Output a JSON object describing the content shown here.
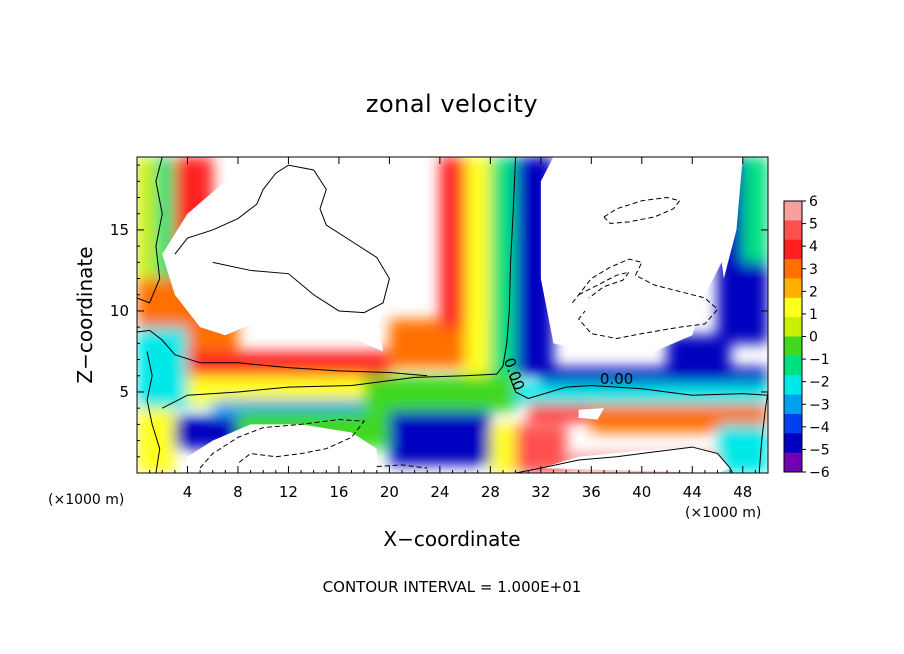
{
  "chart_data": {
    "type": "heatmap",
    "title": "zonal velocity",
    "xlabel": "X−coordinate",
    "ylabel": "Z−coordinate",
    "x_unit": "(×1000 m)",
    "y_unit": "(×1000 m)",
    "xlim": [
      0,
      50
    ],
    "ylim": [
      0,
      19.5
    ],
    "x_ticks": [
      4,
      8,
      12,
      16,
      20,
      24,
      28,
      32,
      36,
      40,
      44,
      48
    ],
    "y_ticks": [
      5,
      10,
      15
    ],
    "contour_interval_label": "CONTOUR INTERVAL = 1.000E+01",
    "contour_labels": [
      {
        "text": "0.00",
        "x": 29.5,
        "y": 6.0
      },
      {
        "text": "0.00",
        "x": 38.0,
        "y": 5.5
      }
    ],
    "colorbar": {
      "min": -6,
      "max": 6,
      "ticks": [
        6,
        5,
        4,
        3,
        2,
        1,
        0,
        -1,
        -2,
        -3,
        -4,
        -5,
        -6
      ],
      "tick_labels": [
        "6",
        "5",
        "4",
        "3",
        "2",
        "1",
        "0",
        "−1",
        "−2",
        "−3",
        "−4",
        "−5",
        "−6"
      ],
      "colors": [
        "#f7a0a0",
        "#ff5050",
        "#ff2020",
        "#ff7000",
        "#ffb000",
        "#ffff20",
        "#c8f000",
        "#40d820",
        "#00e080",
        "#00e8e8",
        "#00a0f0",
        "#0040f0",
        "#0000c0",
        "#7000b0"
      ]
    },
    "field_cells": [
      {
        "x0": 0,
        "x1": 1.5,
        "y0": 0,
        "y1": 19.5,
        "value": 0.5
      },
      {
        "x0": 1.5,
        "x1": 4,
        "y0": 11.5,
        "y1": 19.5,
        "value": -1.5
      },
      {
        "x0": 3,
        "x1": 6,
        "y0": 11,
        "y1": 19.5,
        "value": 4
      },
      {
        "x0": 0,
        "x1": 8,
        "y0": 7,
        "y1": 12,
        "value": 3
      },
      {
        "x0": 0,
        "x1": 4,
        "y0": 4,
        "y1": 9,
        "value": -2
      },
      {
        "x0": 0,
        "x1": 3,
        "y0": 0,
        "y1": 4,
        "value": 1
      },
      {
        "x0": 2,
        "x1": 10,
        "y0": 4,
        "y1": 6,
        "value": -2.5
      },
      {
        "x0": 4,
        "x1": 20,
        "y0": 6,
        "y1": 7.5,
        "value": 4
      },
      {
        "x0": 4,
        "x1": 18,
        "y0": 4.2,
        "y1": 6,
        "value": 1.5
      },
      {
        "x0": 6,
        "x1": 20,
        "y0": 3.6,
        "y1": 4.5,
        "value": -3
      },
      {
        "x0": 3,
        "x1": 8,
        "y0": 1.5,
        "y1": 3.5,
        "value": -4.5
      },
      {
        "x0": 8,
        "x1": 20,
        "y0": 1.5,
        "y1": 3.8,
        "value": 0
      },
      {
        "x0": 20,
        "x1": 28,
        "y0": 6.5,
        "y1": 9.5,
        "value": 3
      },
      {
        "x0": 24,
        "x1": 27,
        "y0": 9,
        "y1": 19.5,
        "value": 4
      },
      {
        "x0": 26,
        "x1": 28,
        "y0": 6,
        "y1": 19.5,
        "value": 1.5
      },
      {
        "x0": 28,
        "x1": 30,
        "y0": 6,
        "y1": 19.5,
        "value": -1
      },
      {
        "x0": 30,
        "x1": 33,
        "y0": 6,
        "y1": 19.5,
        "value": -4.5
      },
      {
        "x0": 18,
        "x1": 30,
        "y0": 3.8,
        "y1": 6,
        "value": 0
      },
      {
        "x0": 20,
        "x1": 28,
        "y0": 0.5,
        "y1": 3.8,
        "value": -4.5
      },
      {
        "x0": 28,
        "x1": 31,
        "y0": 0,
        "y1": 3,
        "value": 1
      },
      {
        "x0": 30,
        "x1": 50,
        "y0": 4.2,
        "y1": 5.5,
        "value": -2.5
      },
      {
        "x0": 32,
        "x1": 50,
        "y0": 5.5,
        "y1": 6.5,
        "value": -4.5
      },
      {
        "x0": 42,
        "x1": 47,
        "y0": 6.5,
        "y1": 8.5,
        "value": -5
      },
      {
        "x0": 31,
        "x1": 36,
        "y0": 3.2,
        "y1": 4.2,
        "value": 4
      },
      {
        "x0": 36,
        "x1": 50,
        "y0": 2.5,
        "y1": 4.2,
        "value": 3
      },
      {
        "x0": 30,
        "x1": 34,
        "y0": 0,
        "y1": 3,
        "value": 4.5
      },
      {
        "x0": 34,
        "x1": 50,
        "y0": 0,
        "y1": 1.2,
        "value": 5.5
      },
      {
        "x0": 46,
        "x1": 50,
        "y0": 0,
        "y1": 3,
        "value": -2
      },
      {
        "x0": 46,
        "x1": 50,
        "y0": 8,
        "y1": 19.5,
        "value": -4.5
      },
      {
        "x0": 48,
        "x1": 50,
        "y0": 13,
        "y1": 19.5,
        "value": -1.5
      }
    ],
    "blank_regions": [
      {
        "name": "upper-left-white",
        "points": [
          [
            2,
            13.5
          ],
          [
            4,
            16
          ],
          [
            7,
            18
          ],
          [
            11,
            19.5
          ],
          [
            17,
            19.5
          ],
          [
            19,
            17
          ],
          [
            20,
            11
          ],
          [
            19,
            9
          ],
          [
            16,
            8.5
          ],
          [
            13,
            9.5
          ],
          [
            10,
            9.5
          ],
          [
            7,
            8.5
          ],
          [
            5,
            9
          ],
          [
            3,
            11
          ]
        ]
      },
      {
        "name": "upper-mid-white",
        "points": [
          [
            8,
            10
          ],
          [
            10,
            9.5
          ],
          [
            13,
            10
          ],
          [
            16,
            9
          ],
          [
            18,
            8
          ],
          [
            19.5,
            7.5
          ],
          [
            19,
            9.5
          ],
          [
            16,
            10
          ]
        ]
      },
      {
        "name": "upper-right-white",
        "points": [
          [
            33,
            19.5
          ],
          [
            47,
            19.5
          ],
          [
            47,
            14
          ],
          [
            45,
            11
          ],
          [
            44,
            8.5
          ],
          [
            41,
            7.5
          ],
          [
            36,
            7.5
          ],
          [
            33,
            8
          ],
          [
            32,
            12
          ],
          [
            32,
            18
          ]
        ]
      },
      {
        "name": "right-strip-white",
        "points": [
          [
            46.5,
            19.5
          ],
          [
            48,
            19.5
          ],
          [
            47.5,
            15
          ],
          [
            46.5,
            12
          ],
          [
            46,
            15
          ]
        ]
      },
      {
        "name": "bottom-left-white",
        "points": [
          [
            3.5,
            0
          ],
          [
            19,
            0
          ],
          [
            19,
            1.5
          ],
          [
            17,
            2.5
          ],
          [
            13,
            3
          ],
          [
            9,
            3
          ],
          [
            6,
            2
          ],
          [
            4,
            1
          ]
        ]
      },
      {
        "name": "bottom-right-white",
        "points": [
          [
            32,
            0.3
          ],
          [
            35,
            1
          ],
          [
            40,
            1.4
          ],
          [
            44,
            1.6
          ],
          [
            46,
            1.2
          ],
          [
            47,
            0.3
          ],
          [
            46,
            0
          ]
        ]
      },
      {
        "name": "mid-right-white",
        "points": [
          [
            35,
            3.9
          ],
          [
            37,
            4.0
          ],
          [
            36.5,
            3.3
          ],
          [
            35,
            3.4
          ]
        ]
      }
    ],
    "contours": [
      {
        "name": "zero-contour-vertical",
        "style": "solid",
        "points": [
          [
            30,
            19.5
          ],
          [
            29.8,
            16
          ],
          [
            29.6,
            13
          ],
          [
            29.5,
            10
          ],
          [
            29.3,
            8
          ],
          [
            29,
            6.6
          ],
          [
            28.5,
            6.1
          ],
          [
            26,
            6
          ],
          [
            22,
            5.9
          ],
          [
            20,
            5.7
          ],
          [
            17,
            5.4
          ],
          [
            12,
            5.3
          ],
          [
            8,
            5
          ],
          [
            4,
            4.8
          ],
          [
            2,
            4
          ]
        ]
      },
      {
        "name": "zero-contour-horizontal",
        "style": "solid",
        "points": [
          [
            29.5,
            6
          ],
          [
            30,
            5
          ],
          [
            31,
            4.6
          ],
          [
            34,
            5.3
          ],
          [
            36,
            5.4
          ],
          [
            40,
            5.2
          ],
          [
            44,
            4.8
          ],
          [
            48,
            4.9
          ],
          [
            50,
            4.8
          ]
        ]
      },
      {
        "name": "upper-left-closed",
        "style": "solid",
        "points": [
          [
            3,
            13.5
          ],
          [
            4,
            14.5
          ],
          [
            6,
            15
          ],
          [
            8,
            15.7
          ],
          [
            9.5,
            16.6
          ],
          [
            10,
            17.5
          ],
          [
            11,
            18.5
          ],
          [
            12,
            19
          ],
          [
            14,
            18.7
          ],
          [
            15,
            17.5
          ],
          [
            14.5,
            16.3
          ],
          [
            15,
            15.3
          ],
          [
            17,
            14.3
          ],
          [
            19,
            13.3
          ],
          [
            20,
            12
          ],
          [
            19.5,
            10.5
          ],
          [
            18,
            9.9
          ],
          [
            16,
            10
          ],
          [
            14,
            11
          ],
          [
            12,
            12.3
          ],
          [
            9,
            12.5
          ],
          [
            6,
            13
          ]
        ]
      },
      {
        "name": "left-edge-upper",
        "style": "solid",
        "points": [
          [
            0,
            10.8
          ],
          [
            1,
            10.5
          ],
          [
            1.8,
            12
          ],
          [
            1.5,
            14
          ],
          [
            2,
            16
          ],
          [
            1.5,
            18
          ],
          [
            2,
            19.5
          ]
        ]
      },
      {
        "name": "left-edge-lower",
        "style": "solid",
        "points": [
          [
            0,
            8.7
          ],
          [
            1,
            8.8
          ],
          [
            2,
            8.2
          ],
          [
            3,
            7.3
          ],
          [
            5,
            6.8
          ],
          [
            8,
            6.8
          ],
          [
            12,
            6.5
          ],
          [
            16,
            6.3
          ],
          [
            20,
            6.2
          ],
          [
            23,
            6.0
          ]
        ]
      },
      {
        "name": "left-vertical",
        "style": "solid",
        "points": [
          [
            1.5,
            0
          ],
          [
            1.8,
            1.5
          ],
          [
            1.2,
            3
          ],
          [
            0.8,
            4.5
          ],
          [
            1.2,
            6
          ],
          [
            0.8,
            7.5
          ]
        ]
      },
      {
        "name": "bottom-left-dashed",
        "style": "dashed",
        "points": [
          [
            5,
            0.3
          ],
          [
            6,
            1.2
          ],
          [
            8,
            2.2
          ],
          [
            10,
            2.8
          ],
          [
            13,
            3
          ],
          [
            16,
            3.3
          ],
          [
            18,
            3.2
          ],
          [
            17,
            2.2
          ],
          [
            15,
            1.5
          ],
          [
            13,
            1.2
          ],
          [
            11,
            1
          ],
          [
            9,
            1.2
          ],
          [
            8,
            0.6
          ]
        ]
      },
      {
        "name": "bottom-mid-dashed",
        "style": "dashed",
        "points": [
          [
            19,
            0.4
          ],
          [
            21,
            0.5
          ],
          [
            23,
            0.3
          ]
        ]
      },
      {
        "name": "bottom-right-solid",
        "style": "solid",
        "points": [
          [
            30,
            0
          ],
          [
            32,
            0.3
          ],
          [
            35,
            0.8
          ],
          [
            38,
            1
          ],
          [
            41,
            1.3
          ],
          [
            44,
            1.6
          ],
          [
            46,
            1.2
          ],
          [
            47,
            0.3
          ],
          [
            47.2,
            0
          ]
        ]
      },
      {
        "name": "right-dashed-small",
        "style": "dashed",
        "points": [
          [
            37,
            15.8
          ],
          [
            38,
            16.3
          ],
          [
            40,
            16.8
          ],
          [
            42,
            17
          ],
          [
            43,
            16.8
          ],
          [
            42.5,
            16.3
          ],
          [
            41,
            15.8
          ],
          [
            39,
            15.5
          ],
          [
            37.5,
            15.4
          ],
          [
            37,
            15.8
          ]
        ]
      },
      {
        "name": "right-dashed-large",
        "style": "dashed",
        "points": [
          [
            34.5,
            10.5
          ],
          [
            36,
            12
          ],
          [
            37.5,
            12.7
          ],
          [
            39,
            13.2
          ],
          [
            40,
            13
          ],
          [
            39.5,
            12.2
          ],
          [
            41,
            11.6
          ],
          [
            43,
            11.2
          ],
          [
            45,
            10.8
          ],
          [
            46,
            10.1
          ],
          [
            45,
            9.2
          ],
          [
            43,
            9
          ],
          [
            40,
            8.6
          ],
          [
            38,
            8.3
          ],
          [
            36,
            8.6
          ],
          [
            35,
            9.5
          ],
          [
            35.5,
            10
          ]
        ]
      },
      {
        "name": "right-dashed-inner",
        "style": "dashed",
        "points": [
          [
            35,
            11
          ],
          [
            36.5,
            11.6
          ],
          [
            38,
            12.2
          ],
          [
            39,
            12.4
          ],
          [
            38.5,
            11.9
          ],
          [
            37,
            11.5
          ],
          [
            35.8,
            10.8
          ]
        ]
      },
      {
        "name": "right-edge-solid",
        "style": "solid",
        "points": [
          [
            49.3,
            0
          ],
          [
            49.5,
            2
          ],
          [
            49.8,
            4
          ],
          [
            50,
            5
          ]
        ]
      }
    ]
  }
}
